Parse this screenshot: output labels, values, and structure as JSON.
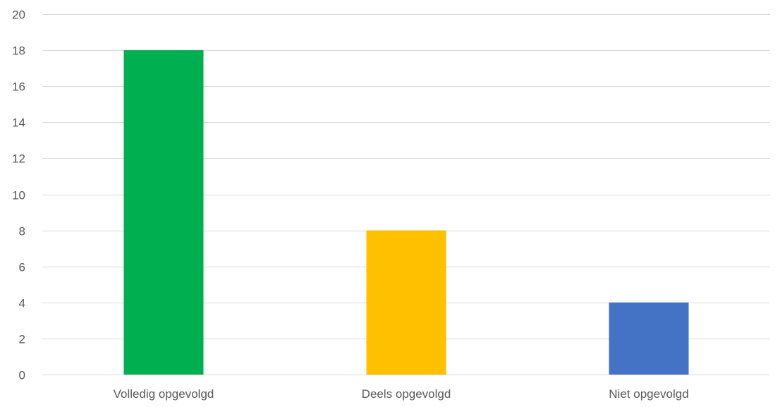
{
  "chart_data": {
    "type": "bar",
    "categories": [
      "Volledig opgevolgd",
      "Deels opgevolgd",
      "Niet opgevolgd"
    ],
    "values": [
      18,
      8,
      4
    ],
    "colors": [
      "#00b050",
      "#ffc000",
      "#4472c4"
    ],
    "title": "",
    "xlabel": "",
    "ylabel": "",
    "ylim": [
      0,
      20
    ],
    "yticks": [
      0,
      2,
      4,
      6,
      8,
      10,
      12,
      14,
      16,
      18,
      20
    ],
    "grid": true,
    "gridline_color": "#d9d9d9",
    "legend": "none"
  }
}
